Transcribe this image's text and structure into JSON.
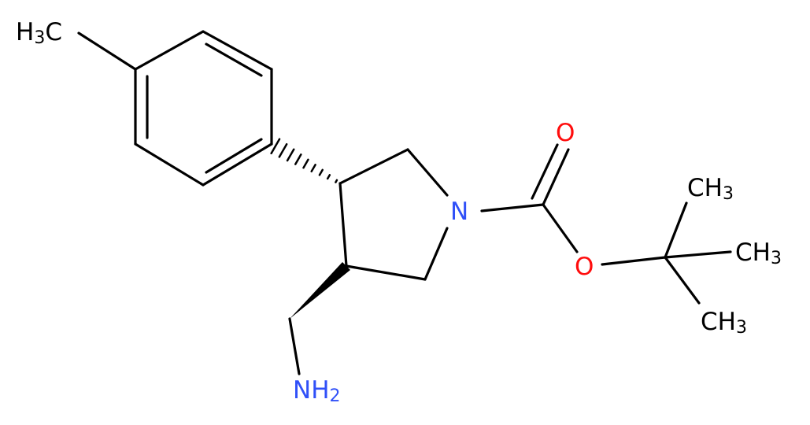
{
  "nodes": [
    {
      "parts": [
        "H",
        "3",
        "C"
      ]
    },
    {
      "parts": [
        "N"
      ]
    },
    {
      "parts": [
        "O"
      ]
    },
    {
      "parts": [
        "O"
      ]
    },
    {
      "parts": [
        "NH",
        "2"
      ]
    },
    {
      "parts": [
        "CH",
        "3"
      ]
    },
    {
      "parts": [
        "CH",
        "3"
      ]
    },
    {
      "parts": [
        "CH",
        "3"
      ]
    }
  ]
}
